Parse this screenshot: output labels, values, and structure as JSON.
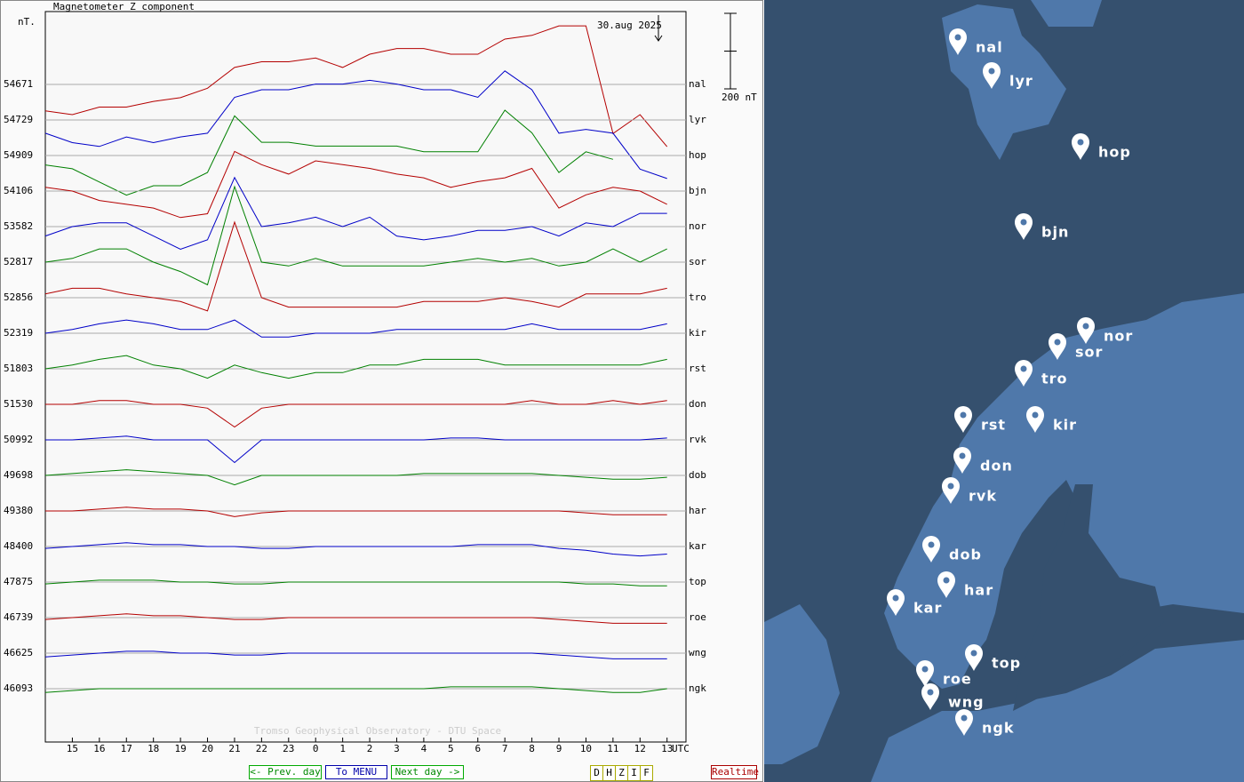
{
  "chart_data": {
    "type": "line",
    "title": "Magnetometer Z component",
    "y_unit": "nT.",
    "date": "30.aug 2025",
    "credit": "Tromso Geophysical Observatory - DTU Space",
    "x_label": "UTC",
    "scale_bar": {
      "value": 200,
      "label": "200 nT"
    },
    "x": [
      14,
      15,
      16,
      17,
      18,
      19,
      20,
      21,
      22,
      23,
      24,
      25,
      26,
      27,
      28,
      29,
      30,
      31,
      32,
      33,
      34,
      35,
      36,
      37
    ],
    "xlim": [
      14,
      37.7
    ],
    "xticks": [
      15,
      16,
      17,
      18,
      19,
      20,
      21,
      22,
      23,
      {
        "value": 24,
        "label": "0"
      },
      {
        "value": 25,
        "label": "1"
      },
      {
        "value": 26,
        "label": "2"
      },
      {
        "value": 27,
        "label": "3"
      },
      {
        "value": 28,
        "label": "4"
      },
      {
        "value": 29,
        "label": "5"
      },
      {
        "value": 30,
        "label": "6"
      },
      {
        "value": 31,
        "label": "7"
      },
      {
        "value": 32,
        "label": "8"
      },
      {
        "value": 33,
        "label": "9"
      },
      {
        "value": 34,
        "label": "10"
      },
      {
        "value": 35,
        "label": "11"
      },
      {
        "value": 36,
        "label": "12"
      },
      {
        "value": 37,
        "label": "13"
      }
    ],
    "series": [
      {
        "name": "nal",
        "color": "#b40000",
        "baseline": 54671,
        "values": [
          -70,
          -80,
          -60,
          -60,
          -45,
          -35,
          -10,
          45,
          60,
          60,
          70,
          45,
          80,
          95,
          95,
          80,
          80,
          120,
          130,
          155,
          155,
          -130,
          -80,
          -165
        ]
      },
      {
        "name": "lyr",
        "color": "#0000c8",
        "baseline": 54729,
        "values": [
          -35,
          -60,
          -70,
          -45,
          -60,
          -45,
          -35,
          60,
          80,
          80,
          95,
          95,
          105,
          95,
          80,
          80,
          60,
          130,
          80,
          -35,
          -25,
          -35,
          -130,
          -155
        ]
      },
      {
        "name": "hop",
        "color": "#008000",
        "baseline": 54909,
        "values": [
          -25,
          -35,
          -70,
          -105,
          -80,
          -80,
          -45,
          105,
          35,
          35,
          25,
          25,
          25,
          25,
          10,
          10,
          10,
          120,
          60,
          -45,
          10,
          -10,
          null,
          null
        ]
      },
      {
        "name": "bjn",
        "color": "#b40000",
        "baseline": 54106,
        "values": [
          10,
          0,
          -25,
          -35,
          -45,
          -70,
          -60,
          105,
          70,
          45,
          80,
          70,
          60,
          45,
          35,
          10,
          25,
          35,
          60,
          -45,
          -10,
          10,
          0,
          -35
        ]
      },
      {
        "name": "nor",
        "color": "#0000c8",
        "baseline": 53582,
        "values": [
          -25,
          0,
          10,
          10,
          -25,
          -60,
          -35,
          130,
          0,
          10,
          25,
          0,
          25,
          -25,
          -35,
          -25,
          -10,
          -10,
          0,
          -25,
          10,
          0,
          35,
          35
        ]
      },
      {
        "name": "sor",
        "color": "#008000",
        "baseline": 52817,
        "values": [
          0,
          10,
          35,
          35,
          0,
          -25,
          -60,
          200,
          0,
          -10,
          10,
          -10,
          -10,
          -10,
          -10,
          0,
          10,
          0,
          10,
          -10,
          0,
          35,
          0,
          35
        ]
      },
      {
        "name": "tro",
        "color": "#b40000",
        "baseline": 52856,
        "values": [
          10,
          25,
          25,
          10,
          0,
          -10,
          -35,
          200,
          0,
          -25,
          -25,
          -25,
          -25,
          -25,
          -10,
          -10,
          -10,
          0,
          -10,
          -25,
          10,
          10,
          10,
          25
        ]
      },
      {
        "name": "kir",
        "color": "#0000c8",
        "baseline": 52319,
        "values": [
          0,
          10,
          25,
          35,
          25,
          10,
          10,
          35,
          -10,
          -10,
          0,
          0,
          0,
          10,
          10,
          10,
          10,
          10,
          25,
          10,
          10,
          10,
          10,
          25
        ]
      },
      {
        "name": "rst",
        "color": "#008000",
        "baseline": 51803,
        "values": [
          0,
          10,
          25,
          35,
          10,
          0,
          -25,
          10,
          -10,
          -25,
          -10,
          -10,
          10,
          10,
          25,
          25,
          25,
          10,
          10,
          10,
          10,
          10,
          10,
          25
        ]
      },
      {
        "name": "don",
        "color": "#b40000",
        "baseline": 51530,
        "values": [
          0,
          0,
          10,
          10,
          0,
          0,
          -10,
          -60,
          -10,
          0,
          0,
          0,
          0,
          0,
          0,
          0,
          0,
          0,
          10,
          0,
          0,
          10,
          0,
          10
        ]
      },
      {
        "name": "rvk",
        "color": "#0000c8",
        "baseline": 50992,
        "values": [
          0,
          0,
          5,
          10,
          0,
          0,
          0,
          -60,
          0,
          0,
          0,
          0,
          0,
          0,
          0,
          5,
          5,
          0,
          0,
          0,
          0,
          0,
          0,
          5
        ]
      },
      {
        "name": "dob",
        "color": "#008000",
        "baseline": 49698,
        "values": [
          0,
          5,
          10,
          15,
          10,
          5,
          0,
          -25,
          0,
          0,
          0,
          0,
          0,
          0,
          5,
          5,
          5,
          5,
          5,
          0,
          -5,
          -10,
          -10,
          -5
        ]
      },
      {
        "name": "har",
        "color": "#b40000",
        "baseline": 49380,
        "values": [
          0,
          0,
          5,
          10,
          5,
          5,
          0,
          -15,
          -5,
          0,
          0,
          0,
          0,
          0,
          0,
          0,
          0,
          0,
          0,
          0,
          -5,
          -10,
          -10,
          -10
        ]
      },
      {
        "name": "kar",
        "color": "#0000c8",
        "baseline": 48400,
        "values": [
          -5,
          0,
          5,
          10,
          5,
          5,
          0,
          0,
          -5,
          -5,
          0,
          0,
          0,
          0,
          0,
          0,
          5,
          5,
          5,
          -5,
          -10,
          -20,
          -25,
          -20
        ]
      },
      {
        "name": "top",
        "color": "#008000",
        "baseline": 47875,
        "values": [
          -5,
          0,
          5,
          5,
          5,
          0,
          0,
          -5,
          -5,
          0,
          0,
          0,
          0,
          0,
          0,
          0,
          0,
          0,
          0,
          0,
          -5,
          -5,
          -10,
          -10
        ]
      },
      {
        "name": "roe",
        "color": "#b40000",
        "baseline": 46739,
        "values": [
          -5,
          0,
          5,
          10,
          5,
          5,
          0,
          -5,
          -5,
          0,
          0,
          0,
          0,
          0,
          0,
          0,
          0,
          0,
          0,
          -5,
          -10,
          -15,
          -15,
          -15
        ]
      },
      {
        "name": "wng",
        "color": "#0000c8",
        "baseline": 46625,
        "values": [
          -10,
          -5,
          0,
          5,
          5,
          0,
          0,
          -5,
          -5,
          0,
          0,
          0,
          0,
          0,
          0,
          0,
          0,
          0,
          0,
          -5,
          -10,
          -15,
          -15,
          -15
        ]
      },
      {
        "name": "ngk",
        "color": "#008000",
        "baseline": 46093,
        "values": [
          -10,
          -5,
          0,
          0,
          0,
          0,
          0,
          0,
          0,
          0,
          0,
          0,
          0,
          0,
          0,
          5,
          5,
          5,
          5,
          0,
          -5,
          -10,
          -10,
          0
        ]
      }
    ]
  },
  "navigation": {
    "prev": "<- Prev. day",
    "menu": "To MENU",
    "next": "Next day ->",
    "components": [
      "D",
      "H",
      "Z",
      "I",
      "F"
    ],
    "realtime": "Realtime"
  },
  "map": {
    "stations": [
      "nal",
      "lyr",
      "hop",
      "bjn",
      "nor",
      "sor",
      "tro",
      "rst",
      "kir",
      "don",
      "rvk",
      "dob",
      "har",
      "kar",
      "top",
      "roe",
      "wng",
      "ngk"
    ]
  }
}
